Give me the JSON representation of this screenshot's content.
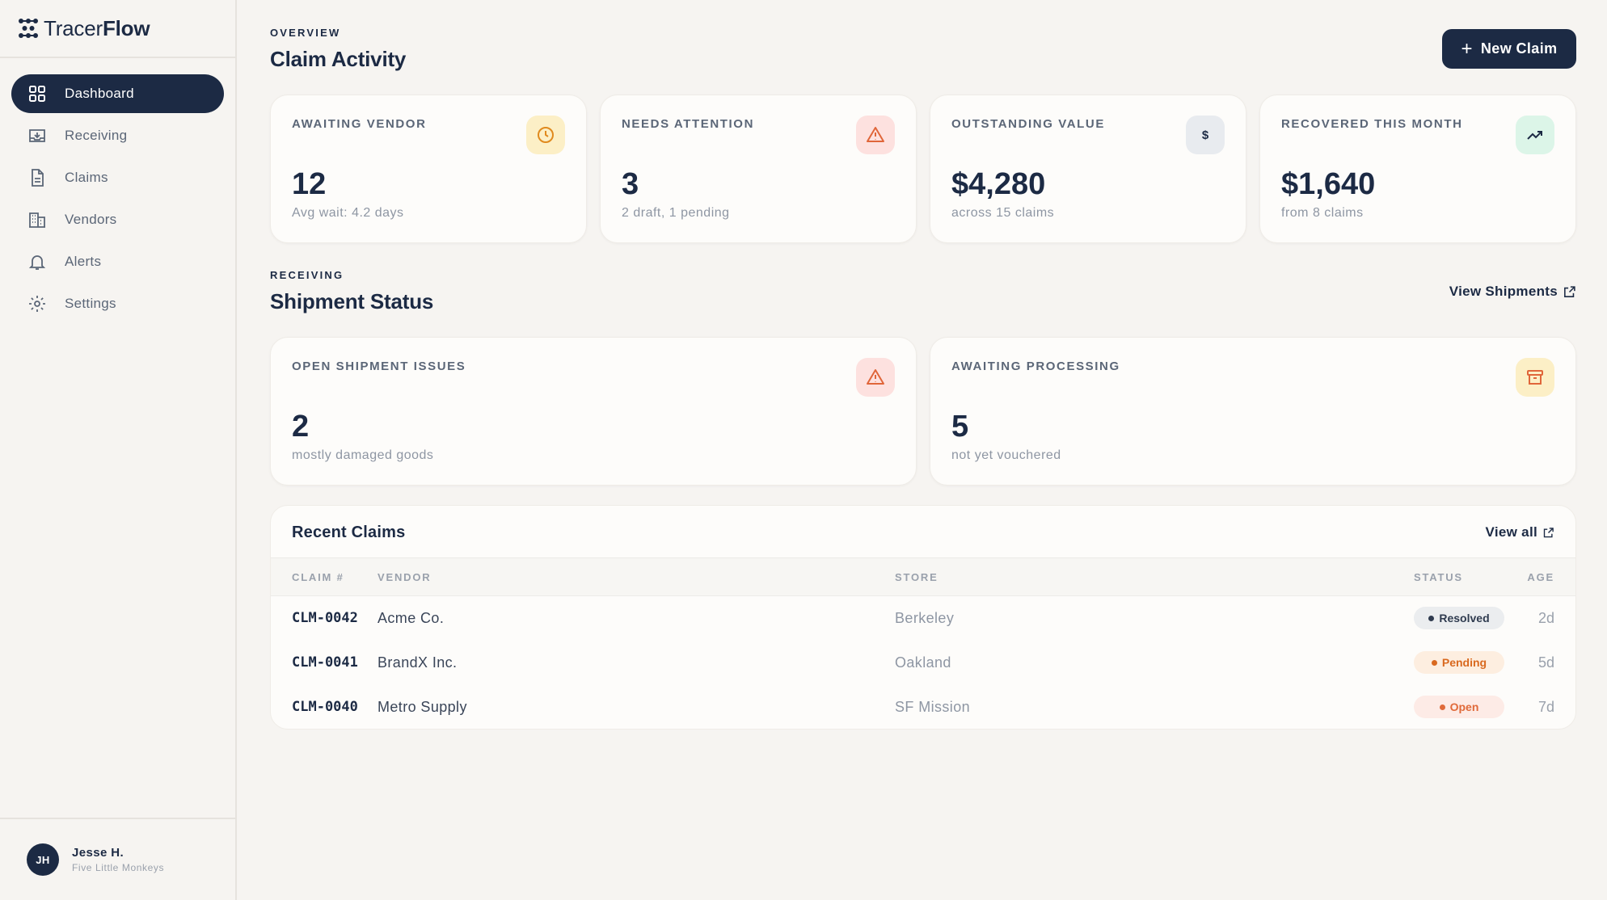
{
  "brand": {
    "name_light": "Tracer",
    "name_bold": "Flow"
  },
  "sidebar": {
    "items": [
      {
        "label": "Dashboard",
        "icon": "dashboard-icon",
        "active": true
      },
      {
        "label": "Receiving",
        "icon": "inbox-icon"
      },
      {
        "label": "Claims",
        "icon": "document-icon"
      },
      {
        "label": "Vendors",
        "icon": "building-icon"
      },
      {
        "label": "Alerts",
        "icon": "bell-icon"
      },
      {
        "label": "Settings",
        "icon": "gear-icon"
      }
    ]
  },
  "user": {
    "initials": "JH",
    "name": "Jesse H.",
    "org": "Five Little Monkeys"
  },
  "overview": {
    "eyebrow": "OVERVIEW",
    "title": "Claim Activity",
    "new_claim_label": "New Claim",
    "cards": [
      {
        "label": "AWAITING VENDOR",
        "value": "12",
        "sub": "Avg wait: 4.2 days",
        "icon": "clock-icon",
        "icon_color": "#e08a1e"
      },
      {
        "label": "NEEDS ATTENTION",
        "value": "3",
        "sub": "2 draft, 1 pending",
        "icon": "warning-icon",
        "icon_color": "#e0663a"
      },
      {
        "label": "OUTSTANDING VALUE",
        "value": "$4,280",
        "sub": "across 15 claims",
        "icon": "dollar-icon",
        "icon_color": "#1c2a44"
      },
      {
        "label": "RECOVERED THIS MONTH",
        "value": "$1,640",
        "sub": "from 8 claims",
        "icon": "trending-up-icon",
        "icon_color": "#1c2a44"
      }
    ]
  },
  "receiving": {
    "eyebrow": "RECEIVING",
    "title": "Shipment Status",
    "view_label": "View Shipments",
    "cards": [
      {
        "label": "OPEN SHIPMENT ISSUES",
        "value": "2",
        "sub": "mostly damaged goods",
        "icon": "warning-icon"
      },
      {
        "label": "AWAITING PROCESSING",
        "value": "5",
        "sub": "not yet vouchered",
        "icon": "archive-icon"
      }
    ]
  },
  "recent_claims": {
    "title": "Recent Claims",
    "view_all_label": "View all",
    "columns": {
      "claim": "CLAIM #",
      "vendor": "VENDOR",
      "store": "STORE",
      "status": "STATUS",
      "age": "AGE"
    },
    "rows": [
      {
        "id": "CLM-0042",
        "vendor": "Acme Co.",
        "store": "Berkeley",
        "status": "Resolved",
        "age": "2d"
      },
      {
        "id": "CLM-0041",
        "vendor": "BrandX Inc.",
        "store": "Oakland",
        "status": "Pending",
        "age": "5d"
      },
      {
        "id": "CLM-0040",
        "vendor": "Metro Supply",
        "store": "SF Mission",
        "status": "Open",
        "age": "7d"
      }
    ]
  },
  "colors": {
    "primary": "#1c2a44",
    "background": "#f6f4f1",
    "card": "#fdfcfa"
  }
}
